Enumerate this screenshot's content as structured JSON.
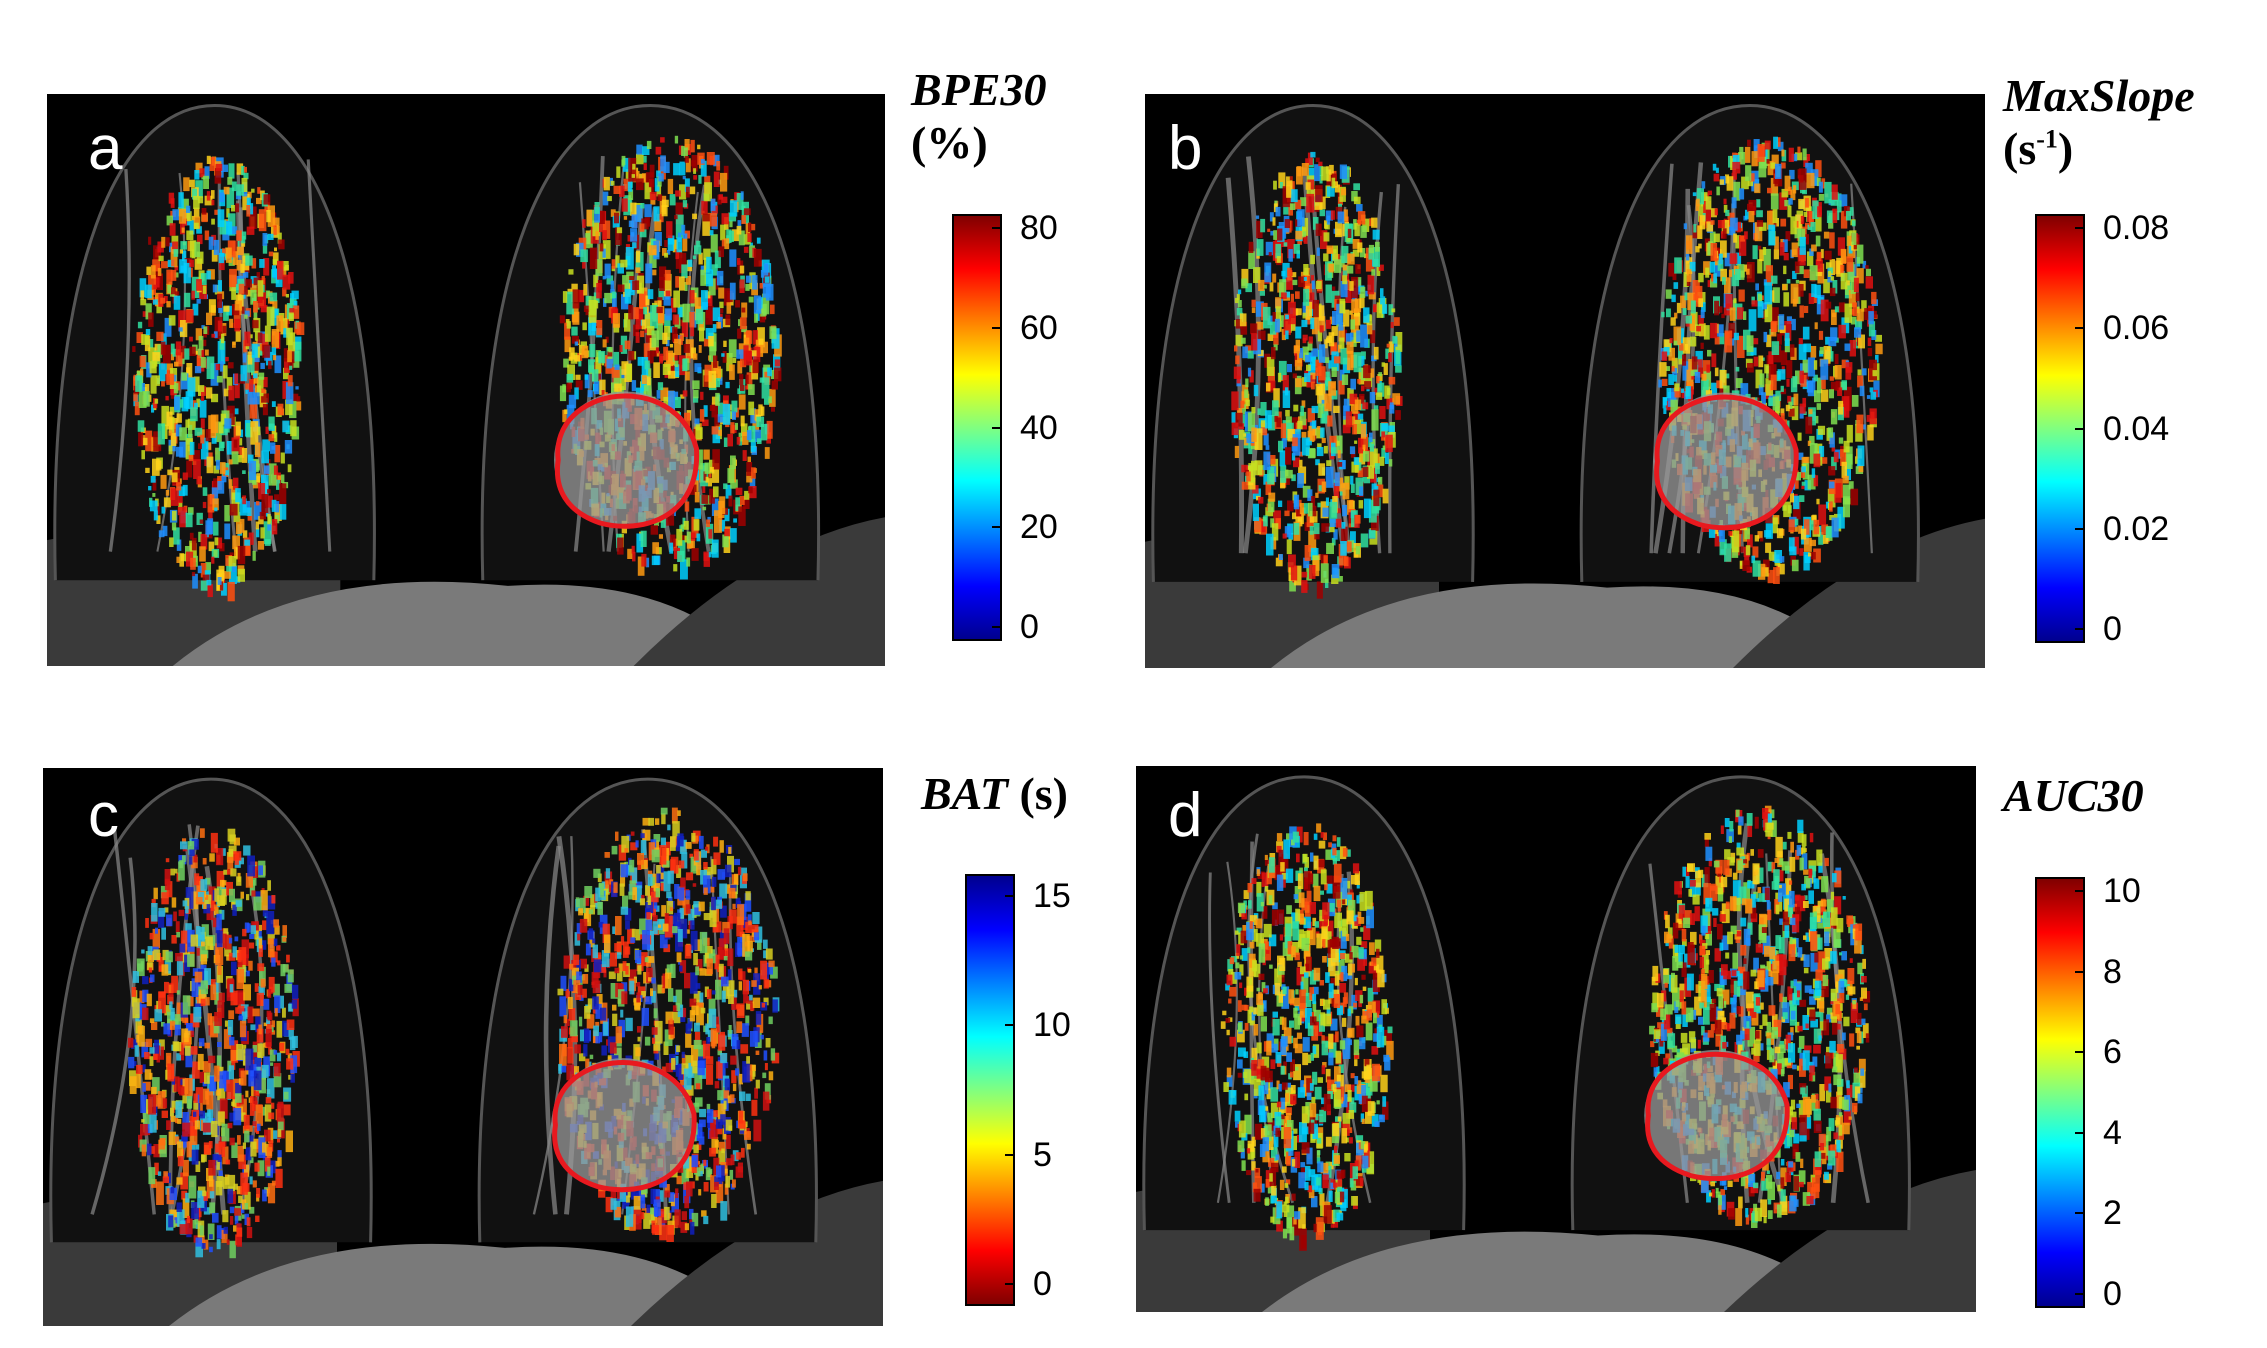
{
  "panels": [
    {
      "label": "a",
      "title_main": "BPE30",
      "title_unit": "(%)",
      "unit_sup": "",
      "unit_close": "",
      "ticks": [
        "80",
        "60",
        "40",
        "20",
        "0"
      ],
      "scale": "jet",
      "reversed": false
    },
    {
      "label": "b",
      "title_main": "MaxSlope",
      "title_unit": "(s",
      "unit_sup": "-1",
      "unit_close": ")",
      "ticks": [
        "0.08",
        "0.06",
        "0.04",
        "0.02",
        "0"
      ],
      "scale": "jet",
      "reversed": false
    },
    {
      "label": "c",
      "title_main": "BAT",
      "title_unit": "(s)",
      "unit_sup": "",
      "unit_close": "",
      "ticks": [
        "15",
        "10",
        "5",
        "0"
      ],
      "scale": "jet",
      "reversed": true
    },
    {
      "label": "d",
      "title_main": "AUC30",
      "title_unit": "",
      "unit_sup": "",
      "unit_close": "",
      "ticks": [
        "10",
        "8",
        "6",
        "4",
        "2",
        "0"
      ],
      "scale": "jet",
      "reversed": false
    }
  ],
  "colors": {
    "lesion_contour": "#e8191f",
    "background": "#000000"
  }
}
